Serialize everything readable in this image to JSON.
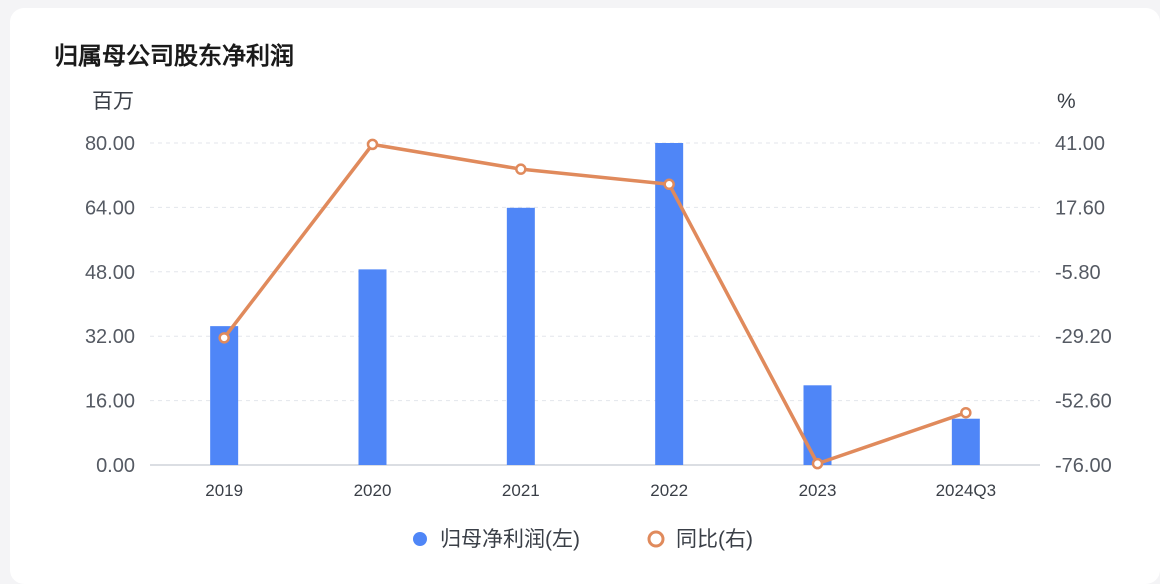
{
  "title": "归属母公司股东净利润",
  "chart_data": {
    "type": "bar+line",
    "categories": [
      "2019",
      "2020",
      "2021",
      "2022",
      "2023",
      "2024Q3"
    ],
    "series": [
      {
        "name": "归母净利润(左)",
        "type": "bar",
        "axis": "left",
        "color": "#4f86f7",
        "values": [
          34.5,
          48.6,
          63.9,
          80.0,
          19.8,
          11.5
        ]
      },
      {
        "name": "同比(右)",
        "type": "line",
        "axis": "right",
        "color": "#e08a5c",
        "values": [
          -29.8,
          40.5,
          31.5,
          26.0,
          -75.5,
          -57.0
        ]
      }
    ],
    "left_axis": {
      "unit": "百万",
      "range": [
        0,
        80
      ],
      "ticks": [
        "0.00",
        "16.00",
        "32.00",
        "48.00",
        "64.00",
        "80.00"
      ]
    },
    "right_axis": {
      "unit": "%",
      "range": [
        -76,
        41
      ],
      "ticks": [
        "-76.00",
        "-52.60",
        "-29.20",
        "-5.80",
        "17.60",
        "41.00"
      ]
    },
    "grid": "horizontal dashed",
    "legend_position": "bottom-center"
  }
}
